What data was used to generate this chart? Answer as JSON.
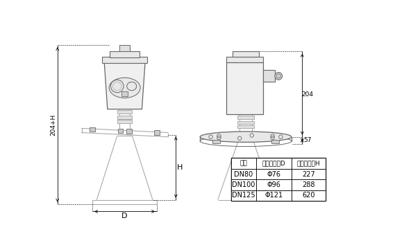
{
  "bg_color": "#ffffff",
  "lc": "#aaaaaa",
  "dc": "#666666",
  "bc": "#333333",
  "table_headers": [
    "法兰",
    "喇叭口直径D",
    "喇叭口高度H"
  ],
  "table_rows": [
    [
      "DN80",
      "Φ76",
      "227"
    ],
    [
      "DN100",
      "Φ96",
      "288"
    ],
    [
      "DN125",
      "Φ121",
      "620"
    ]
  ],
  "dim_204": "204",
  "dim_57": "57",
  "dim_H": "H",
  "dim_D": "D",
  "dim_204H": "204+H",
  "fs_dim": 6.5,
  "fs_table_hdr": 6.5,
  "fs_table_cell": 7.0
}
